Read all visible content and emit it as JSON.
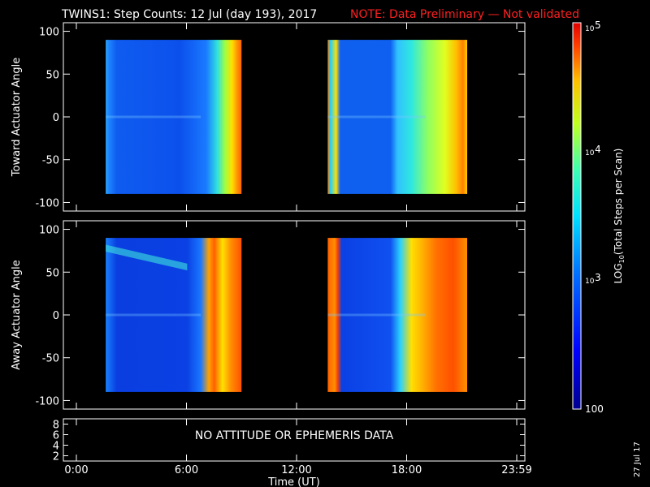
{
  "header": {
    "title": "TWINS1: Step Counts: 12 Jul (day 193), 2017",
    "note": "NOTE: Data Preliminary — Not validated",
    "note_color": "#ff2020"
  },
  "footer": {
    "date_stamp": "27 Jul 17",
    "no_data_message": "NO ATTITUDE OR EPHEMERIS DATA"
  },
  "chart_data": [
    {
      "type": "heatmap",
      "panel": "toward",
      "ylabel": "Toward Actuator Angle",
      "ylim": [
        -110,
        110
      ],
      "y_ticks": [
        "100",
        "50",
        "0",
        "-50",
        "-100"
      ],
      "y_tick_values": [
        100,
        50,
        0,
        -50,
        -100
      ],
      "xlim_hours": [
        0,
        24
      ],
      "data_blocks": [
        {
          "start_hour": 1.6,
          "end_hour": 9.0,
          "angle_range": [
            -90,
            90
          ]
        },
        {
          "start_hour": 13.7,
          "end_hour": 21.3,
          "angle_range": [
            -90,
            90
          ]
        }
      ]
    },
    {
      "type": "heatmap",
      "panel": "away",
      "ylabel": "Away Actuator Angle",
      "ylim": [
        -110,
        110
      ],
      "y_ticks": [
        "100",
        "50",
        "0",
        "-50",
        "-100"
      ],
      "y_tick_values": [
        100,
        50,
        0,
        -50,
        -100
      ],
      "xlim_hours": [
        0,
        24
      ],
      "data_blocks": [
        {
          "start_hour": 1.6,
          "end_hour": 9.0,
          "angle_range": [
            -90,
            90
          ]
        },
        {
          "start_hour": 13.7,
          "end_hour": 21.3,
          "angle_range": [
            -90,
            90
          ]
        }
      ]
    },
    {
      "type": "line",
      "panel": "ephemeris",
      "ylim": [
        1,
        9
      ],
      "y_ticks": [
        "8",
        "6",
        "4",
        "2"
      ],
      "y_tick_values": [
        8,
        6,
        4,
        2
      ]
    }
  ],
  "x_axis": {
    "label": "Time (UT)",
    "ticks": [
      "0:00",
      "6:00",
      "12:00",
      "18:00",
      "23:59"
    ],
    "tick_hours": [
      0,
      6,
      12,
      18,
      24
    ]
  },
  "colorbar": {
    "label_prefix": "LOG",
    "label_sub": "10",
    "label_suffix": "(Total Steps per Scan)",
    "top_base": "10",
    "top_exp": "5",
    "mid_base": "10",
    "mid_exp": "4",
    "low_base": "10",
    "low_exp": "3",
    "bottom": "100",
    "log_range": [
      2,
      5
    ]
  }
}
